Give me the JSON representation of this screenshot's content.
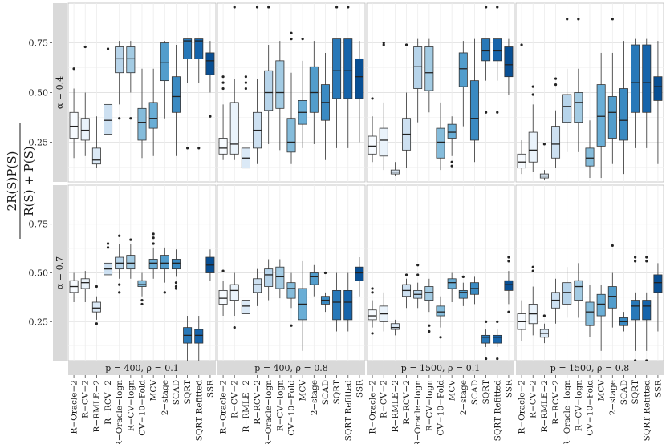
{
  "chart_data": {
    "type": "boxplot",
    "ylabel": {
      "num": "2R(S)P(S)",
      "den": "R(S) + P(S)"
    },
    "yticks": [
      0.25,
      0.5,
      0.75
    ],
    "ytick_labels": [
      "0.25",
      "0.50",
      "0.75"
    ],
    "ylim": [
      0.05,
      0.95
    ],
    "row_labels": [
      "α = 0.4",
      "α = 0.7"
    ],
    "panels": [
      "p = 400, ρ = 0.1",
      "p = 400, ρ = 0.8",
      "p = 1500, ρ = 0.1",
      "p = 1500, ρ = 0.8"
    ],
    "methods": [
      "R−Oracle−2",
      "R−CV−2",
      "R−RMLE−2",
      "R−RCV−2",
      "R−Oracle−logn",
      "R−CV−logn",
      "CV−10−Fold",
      "MCV",
      "2−stage",
      "SCAD",
      "SQRT",
      "SQRT Refitted",
      "SSR"
    ],
    "colors": [
      "#f7fbff",
      "#eaf3fb",
      "#dbe9f6",
      "#cde0f1",
      "#b7d4ea",
      "#a3cbe3",
      "#85bcdb",
      "#6aaed6",
      "#529dcc",
      "#3a8ac2",
      "#2878b8",
      "#1664ab",
      "#084f94"
    ],
    "stats_note": "each box: [lower whisker, Q1, median, Q3, upper whisker, [outliers]]",
    "data": [
      [
        [
          [
            0.17,
            0.27,
            0.33,
            0.4,
            0.52,
            [
              0.62
            ]
          ],
          [
            0.18,
            0.26,
            0.31,
            0.37,
            0.5,
            [
              0.73
            ]
          ],
          [
            0.12,
            0.14,
            0.16,
            0.22,
            0.38,
            []
          ],
          [
            0.19,
            0.29,
            0.36,
            0.44,
            0.62,
            [
              0.72
            ]
          ],
          [
            0.44,
            0.6,
            0.67,
            0.73,
            0.76,
            [
              0.37
            ]
          ],
          [
            0.5,
            0.6,
            0.67,
            0.73,
            0.76,
            [
              0.37
            ]
          ],
          [
            0.17,
            0.26,
            0.35,
            0.42,
            0.62,
            []
          ],
          [
            0.18,
            0.32,
            0.37,
            0.45,
            0.62,
            []
          ],
          [
            0.37,
            0.56,
            0.65,
            0.75,
            0.76,
            []
          ],
          [
            0.18,
            0.4,
            0.48,
            0.58,
            0.74,
            []
          ],
          [
            0.55,
            0.67,
            0.76,
            0.77,
            0.77,
            [
              0.22
            ]
          ],
          [
            0.55,
            0.67,
            0.76,
            0.77,
            0.77,
            [
              0.22
            ]
          ],
          [
            0.5,
            0.59,
            0.66,
            0.7,
            0.76,
            [
              0.38
            ]
          ]
        ],
        [
          [
            0.16,
            0.19,
            0.22,
            0.27,
            0.44,
            [
              0.52,
              0.55,
              0.58
            ]
          ],
          [
            0.16,
            0.19,
            0.24,
            0.45,
            0.57,
            [
              0.93
            ]
          ],
          [
            0.1,
            0.12,
            0.17,
            0.22,
            0.44,
            [
              0.52,
              0.55,
              0.58
            ]
          ],
          [
            0.14,
            0.22,
            0.31,
            0.4,
            0.57,
            [
              0.93
            ]
          ],
          [
            0.24,
            0.41,
            0.5,
            0.61,
            0.74,
            [
              0.93
            ]
          ],
          [
            0.21,
            0.42,
            0.5,
            0.66,
            0.76,
            []
          ],
          [
            0.14,
            0.2,
            0.25,
            0.37,
            0.6,
            [
              0.77,
              0.8
            ]
          ],
          [
            0.22,
            0.34,
            0.4,
            0.46,
            0.66,
            [
              0.77
            ]
          ],
          [
            0.24,
            0.4,
            0.5,
            0.63,
            0.76,
            []
          ],
          [
            0.16,
            0.36,
            0.45,
            0.54,
            0.7,
            []
          ],
          [
            0.22,
            0.47,
            0.61,
            0.77,
            0.77,
            [
              0.93
            ]
          ],
          [
            0.22,
            0.47,
            0.61,
            0.77,
            0.77,
            [
              0.93
            ]
          ],
          [
            0.25,
            0.47,
            0.58,
            0.67,
            0.76,
            []
          ]
        ],
        [
          [
            0.15,
            0.19,
            0.23,
            0.28,
            0.38,
            [
              0.47
            ]
          ],
          [
            0.11,
            0.18,
            0.26,
            0.32,
            0.45,
            [
              0.74,
              0.75
            ]
          ],
          [
            0.08,
            0.09,
            0.1,
            0.11,
            0.15,
            []
          ],
          [
            0.12,
            0.21,
            0.29,
            0.37,
            0.5,
            [
              0.74
            ]
          ],
          [
            0.35,
            0.52,
            0.63,
            0.73,
            0.77,
            []
          ],
          [
            0.4,
            0.51,
            0.6,
            0.73,
            0.77,
            []
          ],
          [
            0.11,
            0.17,
            0.25,
            0.32,
            0.45,
            []
          ],
          [
            0.18,
            0.27,
            0.3,
            0.34,
            0.38,
            [
              0.15,
              0.13
            ]
          ],
          [
            0.33,
            0.53,
            0.62,
            0.7,
            0.76,
            []
          ],
          [
            0.15,
            0.26,
            0.37,
            0.56,
            0.77,
            []
          ],
          [
            0.56,
            0.66,
            0.71,
            0.77,
            0.77,
            [
              0.4,
              0.93
            ]
          ],
          [
            0.56,
            0.66,
            0.71,
            0.77,
            0.77,
            [
              0.4,
              0.93
            ]
          ],
          [
            0.49,
            0.58,
            0.64,
            0.73,
            0.77,
            []
          ]
        ],
        [
          [
            0.09,
            0.12,
            0.15,
            0.19,
            0.26,
            [
              0.74
            ]
          ],
          [
            0.1,
            0.15,
            0.21,
            0.3,
            0.44,
            [
              0.49,
              0.53
            ]
          ],
          [
            0.06,
            0.07,
            0.08,
            0.09,
            0.11,
            [
              0.24
            ]
          ],
          [
            0.12,
            0.17,
            0.24,
            0.33,
            0.41,
            [
              0.54,
              0.57
            ]
          ],
          [
            0.2,
            0.35,
            0.43,
            0.49,
            0.62,
            [
              0.87
            ]
          ],
          [
            0.2,
            0.35,
            0.45,
            0.5,
            0.62,
            [
              0.87
            ]
          ],
          [
            0.07,
            0.13,
            0.17,
            0.22,
            0.36,
            []
          ],
          [
            0.07,
            0.23,
            0.38,
            0.54,
            0.7,
            []
          ],
          [
            0.14,
            0.27,
            0.4,
            0.48,
            0.7,
            [
              0.87
            ]
          ],
          [
            0.09,
            0.26,
            0.36,
            0.52,
            0.76,
            []
          ],
          [
            0.22,
            0.4,
            0.55,
            0.74,
            0.77,
            []
          ],
          [
            0.22,
            0.4,
            0.55,
            0.74,
            0.77,
            []
          ],
          [
            0.14,
            0.46,
            0.53,
            0.58,
            0.76,
            []
          ]
        ]
      ],
      [
        [
          [
            0.35,
            0.4,
            0.43,
            0.46,
            0.5,
            []
          ],
          [
            0.35,
            0.42,
            0.45,
            0.47,
            0.51,
            []
          ],
          [
            0.26,
            0.3,
            0.32,
            0.35,
            0.38,
            [
              0.24,
              0.43
            ]
          ],
          [
            0.4,
            0.49,
            0.52,
            0.55,
            0.61,
            [
              0.63,
              0.65
            ]
          ],
          [
            0.47,
            0.52,
            0.55,
            0.58,
            0.65,
            [
              0.4,
              0.44,
              0.69
            ]
          ],
          [
            0.47,
            0.52,
            0.55,
            0.59,
            0.65,
            [
              0.67
            ]
          ],
          [
            0.38,
            0.43,
            0.44,
            0.46,
            0.5,
            [
              0.34,
              0.36
            ]
          ],
          [
            0.47,
            0.52,
            0.55,
            0.57,
            0.63,
            [
              0.65,
              0.68,
              0.7
            ]
          ],
          [
            0.45,
            0.52,
            0.55,
            0.59,
            0.63,
            [
              0.4
            ]
          ],
          [
            0.48,
            0.52,
            0.55,
            0.57,
            0.62,
            [
              0.42,
              0.43,
              0.45
            ]
          ],
          [
            0.05,
            0.14,
            0.18,
            0.22,
            0.28,
            []
          ],
          [
            0.05,
            0.14,
            0.18,
            0.21,
            0.28,
            []
          ],
          [
            0.46,
            0.5,
            0.54,
            0.58,
            0.62,
            []
          ]
        ],
        [
          [
            0.28,
            0.34,
            0.37,
            0.41,
            0.46,
            [
              0.51
            ]
          ],
          [
            0.28,
            0.36,
            0.41,
            0.44,
            0.5,
            [
              0.22
            ]
          ],
          [
            0.22,
            0.29,
            0.33,
            0.36,
            0.42,
            []
          ],
          [
            0.33,
            0.4,
            0.44,
            0.47,
            0.52,
            []
          ],
          [
            0.36,
            0.43,
            0.49,
            0.52,
            0.57,
            []
          ],
          [
            0.37,
            0.42,
            0.48,
            0.53,
            0.57,
            []
          ],
          [
            0.32,
            0.37,
            0.42,
            0.45,
            0.5,
            [
              0.23
            ]
          ],
          [
            0.1,
            0.26,
            0.34,
            0.42,
            0.56,
            []
          ],
          [
            0.38,
            0.44,
            0.48,
            0.5,
            0.54,
            []
          ],
          [
            0.3,
            0.34,
            0.36,
            0.38,
            0.4,
            [
              0.5
            ]
          ],
          [
            0.2,
            0.26,
            0.35,
            0.41,
            0.5,
            []
          ],
          [
            0.2,
            0.26,
            0.35,
            0.41,
            0.5,
            []
          ],
          [
            0.38,
            0.46,
            0.5,
            0.53,
            0.58,
            []
          ]
        ],
        [
          [
            0.22,
            0.26,
            0.28,
            0.31,
            0.36,
            [
              0.19,
              0.4,
              0.42
            ]
          ],
          [
            0.2,
            0.25,
            0.29,
            0.33,
            0.4,
            []
          ],
          [
            0.18,
            0.21,
            0.22,
            0.24,
            0.26,
            []
          ],
          [
            0.32,
            0.38,
            0.41,
            0.44,
            0.47,
            [
              0.49
            ]
          ],
          [
            0.32,
            0.37,
            0.39,
            0.41,
            0.45,
            [
              0.49,
              0.54
            ]
          ],
          [
            0.3,
            0.36,
            0.4,
            0.43,
            0.47,
            [
              0.2,
              0.23
            ]
          ],
          [
            0.22,
            0.28,
            0.3,
            0.33,
            0.38,
            [
              0.17
            ]
          ],
          [
            0.35,
            0.42,
            0.45,
            0.47,
            0.5,
            []
          ],
          [
            0.33,
            0.37,
            0.4,
            0.41,
            0.45,
            [
              0.48
            ]
          ],
          [
            0.34,
            0.39,
            0.42,
            0.45,
            0.48,
            []
          ],
          [
            0.12,
            0.14,
            0.17,
            0.18,
            0.21,
            [
              0.06,
              0.25
            ]
          ],
          [
            0.12,
            0.14,
            0.17,
            0.18,
            0.21,
            [
              0.06,
              0.25
            ]
          ],
          [
            0.34,
            0.41,
            0.44,
            0.46,
            0.51,
            [
              0.3,
              0.56,
              0.58
            ]
          ]
        ],
        [
          [
            0.15,
            0.21,
            0.25,
            0.29,
            0.36,
            []
          ],
          [
            0.18,
            0.24,
            0.29,
            0.34,
            0.43,
            [
              0.51,
              0.53
            ]
          ],
          [
            0.14,
            0.17,
            0.19,
            0.21,
            0.24,
            [
              0.28
            ]
          ],
          [
            0.24,
            0.32,
            0.36,
            0.4,
            0.47,
            []
          ],
          [
            0.27,
            0.34,
            0.4,
            0.45,
            0.53,
            []
          ],
          [
            0.27,
            0.36,
            0.43,
            0.46,
            0.55,
            []
          ],
          [
            0.17,
            0.23,
            0.3,
            0.35,
            0.44,
            []
          ],
          [
            0.1,
            0.28,
            0.34,
            0.39,
            0.44,
            []
          ],
          [
            0.22,
            0.32,
            0.38,
            0.43,
            0.5,
            [
              0.64
            ]
          ],
          [
            0.2,
            0.23,
            0.25,
            0.27,
            0.3,
            []
          ],
          [
            0.1,
            0.26,
            0.33,
            0.36,
            0.4,
            [
              0.05,
              0.56,
              0.58
            ]
          ],
          [
            0.1,
            0.26,
            0.33,
            0.36,
            0.4,
            [
              0.05,
              0.56,
              0.58
            ]
          ],
          [
            0.2,
            0.4,
            0.45,
            0.49,
            0.55,
            []
          ]
        ]
      ]
    ]
  }
}
